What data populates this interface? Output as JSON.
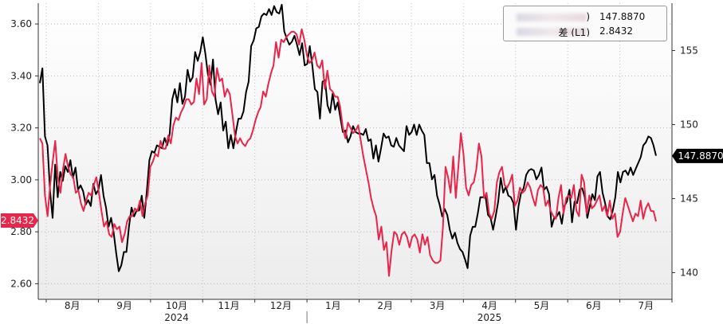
{
  "chart_data": {
    "type": "line",
    "x_labels": [
      "8月",
      "9月",
      "10月",
      "11月",
      "12月",
      "1月",
      "2月",
      "3月",
      "4月",
      "5月",
      "6月",
      "7月"
    ],
    "year_labels": [
      "2024",
      "2025"
    ],
    "left_axis": {
      "ticks": [
        "3.60",
        "3.40",
        "3.20",
        "3.00",
        "2.80",
        "2.60"
      ],
      "ylim": [
        2.54,
        3.68
      ]
    },
    "right_axis": {
      "ticks": [
        "155",
        "150",
        "145",
        "140"
      ],
      "ylim": [
        138.2,
        158.2
      ]
    },
    "series": [
      {
        "name_visible": ")",
        "axis": "right",
        "color": "#000000",
        "last_value": 147.887,
        "last_label": "147.8870",
        "values": [
          152.8,
          153.8,
          149.2,
          148.6,
          145.5,
          143.7,
          147.3,
          145.1,
          146.8,
          146.2,
          147.2,
          146.8,
          147.6,
          146.4,
          147.1,
          145.6,
          145.9,
          145.5,
          144.6,
          144.9,
          144.5,
          146.0,
          145.3,
          145.6,
          146.6,
          145.2,
          144.4,
          143.1,
          143.7,
          142.7,
          141.3,
          140.1,
          140.5,
          141.4,
          141.4,
          143.1,
          144.4,
          143.8,
          144.2,
          144.2,
          145.2,
          143.7,
          145.5,
          147.6,
          148.2,
          148.1,
          148.6,
          148.5,
          148.4,
          149.1,
          148.6,
          149.4,
          151.7,
          152.4,
          151.5,
          152.8,
          151.4,
          151.9,
          153.7,
          152.9,
          153.2,
          154.9,
          154.3,
          154.9,
          155.9,
          154.8,
          153.4,
          152.7,
          154.4,
          151.7,
          150.7,
          151.5,
          149.6,
          150.2,
          148.4,
          149.3,
          148.4,
          149.5,
          150.4,
          150.4,
          150.9,
          152.2,
          152.9,
          155.3,
          155.7,
          156.5,
          156.6,
          157.3,
          157.5,
          157.4,
          157.8,
          157.4,
          158.0,
          157.6,
          157.5,
          158.1,
          156.3,
          155.8,
          155.4,
          155.6,
          156.0,
          155.4,
          154.7,
          155.5,
          154.0,
          154.1,
          155.3,
          154.0,
          152.4,
          152.2,
          150.4,
          152.9,
          153.0,
          151.3,
          150.8,
          152.1,
          151.0,
          151.5,
          150.5,
          149.5,
          149.6,
          148.8,
          149.2,
          149.9,
          149.5,
          149.4,
          149.4,
          149.3,
          149.7,
          148.9,
          149.0,
          147.7,
          148.6,
          147.5,
          148.4,
          149.4,
          149.1,
          149.2,
          148.6,
          148.5,
          149.1,
          148.6,
          148.4,
          148.2,
          149.9,
          149.3,
          149.5,
          150.0,
          149.3,
          150.0,
          149.6,
          149.3,
          147.4,
          147.4,
          146.3,
          146.6,
          145.2,
          144.6,
          143.8,
          144.3,
          143.9,
          142.9,
          142.3,
          142.7,
          142.0,
          141.6,
          141.4,
          140.9,
          140.3,
          142.5,
          143.1,
          143.1,
          144.0,
          145.1,
          145.1,
          145.2,
          143.9,
          143.7,
          142.9,
          143.8,
          144.8,
          146.4,
          145.4,
          145.8,
          145.2,
          145.1,
          144.7,
          142.9,
          144.5,
          145.4,
          145.7,
          146.6,
          146.9,
          147.0,
          146.9,
          146.3,
          146.6,
          147.1,
          145.6,
          145.8,
          145.3,
          143.1,
          143.7,
          143.8,
          144.1,
          143.3,
          144.5,
          144.8,
          145.6,
          143.4,
          144.8,
          144.7,
          145.6,
          145.7,
          145.1,
          143.7,
          144.5,
          145.3,
          144.9,
          146.5,
          146.8,
          145.4,
          144.7,
          143.8,
          143.6,
          144.2,
          145.1,
          146.8,
          146.1,
          146.8,
          146.9,
          146.6,
          147.1,
          146.6,
          147.0,
          147.4,
          147.8,
          148.6,
          148.8,
          149.2,
          149.1,
          148.6,
          147.9
        ]
      },
      {
        "name_visible": "差 (L1)",
        "axis": "left",
        "color": "#e8254a",
        "last_value": 2.8432,
        "last_label": "2.8432",
        "values": [
          3.16,
          3.14,
          2.94,
          2.86,
          2.98,
          3.07,
          3.15,
          3.01,
          2.95,
          3.04,
          3.1,
          3.05,
          3.02,
          3.01,
          2.95,
          2.96,
          2.91,
          2.88,
          2.92,
          2.95,
          2.94,
          2.98,
          3.01,
          2.95,
          2.88,
          2.82,
          2.84,
          2.79,
          2.78,
          2.83,
          2.81,
          2.82,
          2.76,
          2.79,
          2.84,
          2.86,
          2.86,
          2.89,
          2.88,
          2.92,
          2.86,
          2.91,
          2.94,
          3.05,
          3.07,
          3.1,
          3.09,
          3.15,
          3.12,
          3.12,
          3.17,
          3.14,
          3.21,
          3.24,
          3.23,
          3.26,
          3.28,
          3.31,
          3.31,
          3.29,
          3.3,
          3.39,
          3.33,
          3.45,
          3.29,
          3.31,
          3.44,
          3.34,
          3.32,
          3.43,
          3.38,
          3.39,
          3.32,
          3.35,
          3.33,
          3.25,
          3.17,
          3.14,
          3.16,
          3.14,
          3.13,
          3.15,
          3.16,
          3.19,
          3.23,
          3.26,
          3.28,
          3.34,
          3.32,
          3.37,
          3.41,
          3.44,
          3.53,
          3.47,
          3.54,
          3.53,
          3.55,
          3.56,
          3.57,
          3.57,
          3.56,
          3.52,
          3.58,
          3.54,
          3.48,
          3.45,
          3.46,
          3.49,
          3.44,
          3.43,
          3.46,
          3.35,
          3.42,
          3.35,
          3.34,
          3.32,
          3.32,
          3.28,
          3.2,
          3.16,
          3.22,
          3.2,
          3.18,
          3.19,
          3.21,
          3.15,
          3.09,
          3.04,
          2.99,
          2.93,
          2.89,
          2.86,
          2.77,
          2.82,
          2.73,
          2.76,
          2.63,
          2.73,
          2.8,
          2.79,
          2.75,
          2.79,
          2.8,
          2.78,
          2.74,
          2.78,
          2.79,
          2.77,
          2.72,
          2.79,
          2.75,
          2.78,
          2.71,
          2.69,
          2.68,
          2.68,
          2.69,
          2.82,
          3.05,
          3.01,
          2.95,
          3.09,
          2.93,
          3.05,
          3.18,
          3.1,
          2.97,
          2.94,
          2.98,
          2.99,
          3.04,
          3.14,
          3.09,
          2.93,
          2.95,
          2.87,
          2.85,
          2.88,
          2.99,
          3.03,
          3.05,
          2.98,
          2.97,
          2.99,
          3.02,
          2.9,
          2.92,
          2.97,
          2.95,
          2.96,
          2.99,
          2.97,
          2.93,
          2.9,
          2.96,
          2.98,
          2.97,
          2.9,
          2.92,
          2.88,
          2.86,
          2.85,
          2.93,
          2.98,
          2.87,
          2.93,
          2.94,
          2.93,
          2.98,
          2.88,
          2.86,
          3.02,
          2.99,
          2.87,
          2.94,
          2.89,
          2.9,
          2.92,
          2.94,
          2.88,
          2.9,
          2.86,
          2.92,
          2.85,
          2.87,
          2.78,
          2.8,
          2.87,
          2.93,
          2.9,
          2.87,
          2.84,
          2.87,
          2.86,
          2.92,
          2.85,
          2.89,
          2.91,
          2.88,
          2.88,
          2.84
        ]
      }
    ],
    "grid": true,
    "legend": "top-right"
  }
}
